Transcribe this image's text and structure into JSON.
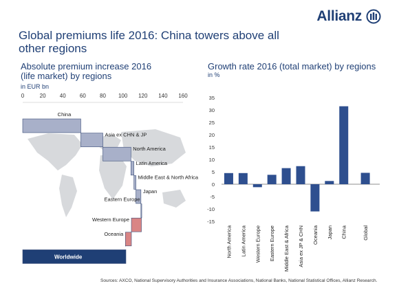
{
  "brand": {
    "name": "Allianz"
  },
  "title": "Global premiums life 2016: China towers above all other regions",
  "left_panel": {
    "title_line1": "Absolute premium  increase 2016",
    "title_line2": "(life market)  by regions",
    "unit": "in EUR bn"
  },
  "right_panel": {
    "title": "Growth rate 2016 (total market) by regions",
    "unit": "in %"
  },
  "source": "Sources: AXCO, National Supervisory Authorities and Insurance Associations, National Banks, National Statistical Offices, Allianz Research.",
  "colors": {
    "brand": "#1f3f75",
    "positive_bar": "#a8b0c9",
    "negative_bar": "#d98585",
    "total_bar": "#1f3f75",
    "growth_bar": "#2e4f8f",
    "map": "#d7d9dc"
  },
  "chart_data": [
    {
      "type": "bar",
      "subtype": "waterfall",
      "orientation": "horizontal",
      "title": "Absolute premium  increase 2016 (life market)  by regions",
      "xlabel": "in EUR bn",
      "xlim": [
        0,
        160
      ],
      "xticks": [
        0,
        20,
        40,
        60,
        80,
        100,
        120,
        140,
        160
      ],
      "categories": [
        "China",
        "Asia ex CHN & JP",
        "North America",
        "Latin America",
        "Middle East & North Africa",
        "Japan",
        "Eastern Europe",
        "Western Europe",
        "Oceania",
        "Worldwide"
      ],
      "values": [
        58,
        22,
        28,
        3,
        2,
        5,
        0.5,
        -10,
        -6,
        103
      ],
      "starts": [
        0,
        58,
        80,
        108,
        111,
        113,
        118,
        118.5,
        108.5,
        0
      ],
      "kinds": [
        "increase",
        "increase",
        "increase",
        "increase",
        "increase",
        "increase",
        "increase",
        "decrease",
        "decrease",
        "total"
      ],
      "grid": false,
      "background": "world map"
    },
    {
      "type": "bar",
      "title": "Growth rate 2016 (total market) by regions",
      "ylabel": "in %",
      "ylim": [
        -15,
        35
      ],
      "yticks": [
        35,
        30,
        25,
        20,
        15,
        10,
        5,
        0,
        -5,
        -10,
        -15
      ],
      "categories": [
        "North America",
        "Latin America",
        "Western Europe",
        "Eastern Europe",
        "Middle East & Africa",
        "Asia ex JP & CHN",
        "Oceania",
        "Japan",
        "China",
        "Global"
      ],
      "values": [
        4.5,
        4.5,
        -1.2,
        3.8,
        6.5,
        7.3,
        -11,
        1.3,
        31.5,
        4.6
      ],
      "grid": false
    }
  ]
}
